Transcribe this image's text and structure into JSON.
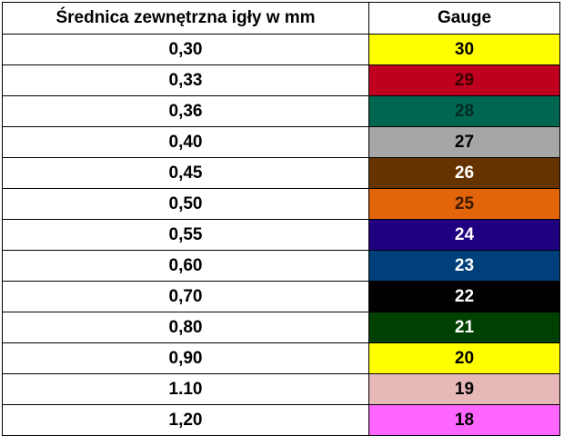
{
  "table": {
    "header": [
      "Średnica zewnętrzna igły w mm",
      "Gauge"
    ],
    "rows": [
      {
        "diameter": "0,30",
        "gauge": "30",
        "fill": "#ffff00",
        "text_color": "#000000"
      },
      {
        "diameter": "0,33",
        "gauge": "29",
        "fill": "#c0001f",
        "text_color": "#3a0000"
      },
      {
        "diameter": "0,36",
        "gauge": "28",
        "fill": "#006650",
        "text_color": "#002a20"
      },
      {
        "diameter": "0,40",
        "gauge": "27",
        "fill": "#a6a6a6",
        "text_color": "#000000"
      },
      {
        "diameter": "0,45",
        "gauge": "26",
        "fill": "#663300",
        "text_color": "#ffffff"
      },
      {
        "diameter": "0,50",
        "gauge": "25",
        "fill": "#e3650a",
        "text_color": "#3a1a00"
      },
      {
        "diameter": "0,55",
        "gauge": "24",
        "fill": "#1f0080",
        "text_color": "#ffffff"
      },
      {
        "diameter": "0,60",
        "gauge": "23",
        "fill": "#00407a",
        "text_color": "#ffffff"
      },
      {
        "diameter": "0,70",
        "gauge": "22",
        "fill": "#000000",
        "text_color": "#ffffff"
      },
      {
        "diameter": "0,80",
        "gauge": "21",
        "fill": "#004000",
        "text_color": "#ffffff"
      },
      {
        "diameter": "0,90",
        "gauge": "20",
        "fill": "#ffff00",
        "text_color": "#000000"
      },
      {
        "diameter": "1.10",
        "gauge": "19",
        "fill": "#e6b8b7",
        "text_color": "#000000"
      },
      {
        "diameter": "1,20",
        "gauge": "18",
        "fill": "#ff66ff",
        "text_color": "#000000"
      }
    ]
  }
}
